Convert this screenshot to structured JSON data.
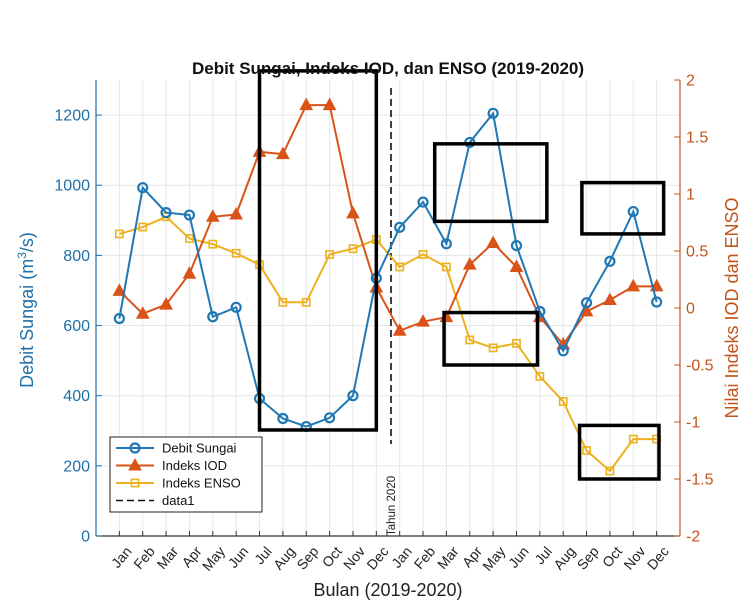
{
  "chart_data": {
    "type": "line",
    "title": "Debit Sungai, Indeks IOD, dan ENSO (2019-2020)",
    "xlabel": "Bulan (2019-2020)",
    "ylabel_left_main": "Debit  Sungai",
    "ylabel_left_unit": "(m",
    "ylabel_left_sup": "3",
    "ylabel_left_tail": "/s)",
    "ylabel_right": "Nilai Indeks IOD dan ENSO",
    "categories": [
      "Jan",
      "Feb",
      "Mar",
      "Apr",
      "May",
      "Jun",
      "Jul",
      "Aug",
      "Sep",
      "Oct",
      "Nov",
      "Dec",
      "Jan",
      "Feb",
      "Mar",
      "Apr",
      "May",
      "Jun",
      "Jul",
      "Aug",
      "Sep",
      "Oct",
      "Nov",
      "Dec"
    ],
    "ylim_left": [
      0,
      1300
    ],
    "yticks_left": [
      0,
      200,
      400,
      600,
      800,
      1000,
      1200
    ],
    "ylim_right": [
      -2,
      2
    ],
    "yticks_right": [
      -2,
      -1.5,
      -1,
      -0.5,
      0,
      0.5,
      1,
      1.5,
      2
    ],
    "series": [
      {
        "name": "Debit Sungai",
        "axis": "left",
        "color": "#1f77b4",
        "marker": "circle",
        "values": [
          620,
          993,
          922,
          915,
          625,
          652,
          392,
          335,
          312,
          337,
          400,
          735,
          880,
          952,
          833,
          1122,
          1205,
          828,
          640,
          528,
          665,
          783,
          925,
          667
        ]
      },
      {
        "name": "Indeks IOD",
        "axis": "right",
        "color": "#d95319",
        "marker": "triangle",
        "values": [
          0.15,
          -0.05,
          0.03,
          0.3,
          0.8,
          0.82,
          1.37,
          1.35,
          1.78,
          1.78,
          0.83,
          0.18,
          -0.2,
          -0.12,
          -0.08,
          0.38,
          0.57,
          0.36,
          -0.08,
          -0.32,
          -0.03,
          0.07,
          0.19,
          0.19
        ]
      },
      {
        "name": "Indeks ENSO",
        "axis": "right",
        "color": "#edb120",
        "marker": "square",
        "values": [
          0.65,
          0.71,
          0.8,
          0.61,
          0.56,
          0.48,
          0.38,
          0.05,
          0.05,
          0.47,
          0.52,
          0.6,
          0.36,
          0.47,
          0.36,
          -0.28,
          -0.35,
          -0.31,
          -0.6,
          -0.82,
          -1.25,
          -1.43,
          -1.15,
          -1.15
        ]
      }
    ],
    "legend": {
      "position": "bottom-left",
      "entries": [
        "Debit Sungai",
        "Indeks IOD",
        "Indeks ENSO",
        "data1"
      ]
    },
    "divider": {
      "label": "Tahun 2020",
      "series_name": "data1",
      "between": [
        "Dec",
        "Jan"
      ]
    },
    "highlight_boxes": [
      {
        "from_index": 6,
        "to_index": 11,
        "ylim_right": [
          -1.07,
          2.08
        ]
      },
      {
        "from_index": 13.5,
        "to_index": 18.3,
        "ylim_right": [
          0.76,
          1.44
        ]
      },
      {
        "from_index": 19.8,
        "to_index": 23.3,
        "ylim_right": [
          0.65,
          1.1
        ]
      },
      {
        "from_index": 13.9,
        "to_index": 17.9,
        "ylim_right": [
          -0.5,
          -0.04
        ]
      },
      {
        "from_index": 19.7,
        "to_index": 23.1,
        "ylim_right": [
          -1.5,
          -1.03
        ]
      }
    ],
    "grid": true
  }
}
